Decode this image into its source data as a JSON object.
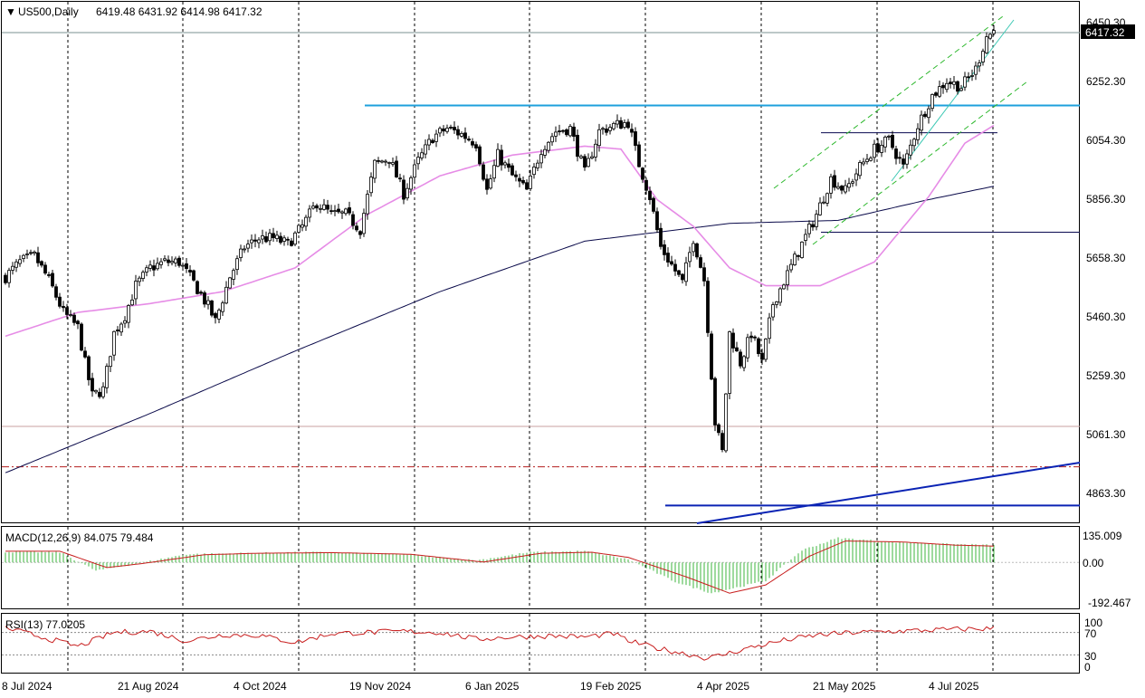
{
  "header": {
    "symbol_label": "US500,Daily",
    "ohlc": "6419.48 6431.92 6414.98 6417.32",
    "arrow_glyph": "▼"
  },
  "price_axis": {
    "ticks": [
      "6450.30",
      "6252.30",
      "6054.30",
      "5856.30",
      "5658.30",
      "5460.30",
      "5259.30",
      "5061.30",
      "4863.30"
    ],
    "current_price_label": "6417.32"
  },
  "macd_panel": {
    "label": "MACD(12,26,9) 84.075 79.484",
    "ticks": [
      "135.009",
      "0.00",
      "-192.467"
    ]
  },
  "rsi_panel": {
    "label": "RSI(13) 77.0205",
    "ticks": [
      "100",
      "70",
      "30",
      "0"
    ]
  },
  "time_axis": {
    "labels": [
      "8 Jul 2024",
      "21 Aug 2024",
      "4 Oct 2024",
      "19 Nov 2024",
      "6 Jan 2025",
      "19 Feb 2025",
      "4 Apr 2025",
      "21 May 2025",
      "4 Jul 2025"
    ]
  },
  "colors": {
    "bull": "#ffffff",
    "bear": "#000000",
    "ma50": "#e68ce6",
    "ma200": "#0a0a4a",
    "channel_green": "#2db82d",
    "resistance": "#1ea0dc",
    "support_navy": "#0a0a50",
    "trend_blue": "#0a23b4",
    "dashdot_red": "#b41e1e",
    "macd_hist": "#3cb43c",
    "macd_signal": "#c81e1e",
    "rsi_line": "#c81e1e"
  },
  "chart_data": {
    "type": "candlestick",
    "symbol": "US500",
    "timeframe": "Daily",
    "last": {
      "open": 6419.48,
      "high": 6431.92,
      "low": 6414.98,
      "close": 6417.32
    },
    "ylim": [
      4760,
      6510
    ],
    "close_anchors": [
      [
        0,
        5590
      ],
      [
        4,
        5640
      ],
      [
        8,
        5660
      ],
      [
        12,
        5580
      ],
      [
        16,
        5470
      ],
      [
        20,
        5420
      ],
      [
        22,
        5300
      ],
      [
        24,
        5190
      ],
      [
        27,
        5210
      ],
      [
        30,
        5400
      ],
      [
        33,
        5460
      ],
      [
        36,
        5560
      ],
      [
        40,
        5620
      ],
      [
        44,
        5640
      ],
      [
        48,
        5640
      ],
      [
        52,
        5570
      ],
      [
        56,
        5490
      ],
      [
        58,
        5440
      ],
      [
        62,
        5590
      ],
      [
        66,
        5690
      ],
      [
        70,
        5720
      ],
      [
        74,
        5720
      ],
      [
        78,
        5700
      ],
      [
        82,
        5760
      ],
      [
        86,
        5840
      ],
      [
        90,
        5800
      ],
      [
        94,
        5800
      ],
      [
        98,
        5750
      ],
      [
        102,
        5970
      ],
      [
        106,
        5990
      ],
      [
        110,
        5870
      ],
      [
        114,
        5980
      ],
      [
        118,
        6060
      ],
      [
        122,
        6090
      ],
      [
        126,
        6070
      ],
      [
        130,
        6040
      ],
      [
        133,
        5880
      ],
      [
        136,
        6000
      ],
      [
        140,
        5930
      ],
      [
        144,
        5880
      ],
      [
        148,
        6020
      ],
      [
        152,
        6080
      ],
      [
        156,
        6090
      ],
      [
        160,
        5940
      ],
      [
        164,
        6080
      ],
      [
        168,
        6100
      ],
      [
        172,
        6110
      ],
      [
        175,
        5970
      ],
      [
        178,
        5860
      ],
      [
        181,
        5690
      ],
      [
        184,
        5630
      ],
      [
        187,
        5570
      ],
      [
        190,
        5720
      ],
      [
        193,
        5580
      ],
      [
        196,
        5100
      ],
      [
        198,
        5000
      ],
      [
        200,
        5400
      ],
      [
        203,
        5300
      ],
      [
        206,
        5400
      ],
      [
        209,
        5300
      ],
      [
        212,
        5500
      ],
      [
        216,
        5600
      ],
      [
        220,
        5700
      ],
      [
        224,
        5800
      ],
      [
        228,
        5920
      ],
      [
        232,
        5880
      ],
      [
        236,
        5960
      ],
      [
        240,
        6020
      ],
      [
        244,
        6050
      ],
      [
        248,
        5960
      ],
      [
        252,
        6100
      ],
      [
        256,
        6200
      ],
      [
        260,
        6250
      ],
      [
        264,
        6230
      ],
      [
        268,
        6290
      ],
      [
        271,
        6400
      ],
      [
        273,
        6417
      ]
    ],
    "ma50_anchors": [
      [
        0,
        5390
      ],
      [
        20,
        5470
      ],
      [
        40,
        5500
      ],
      [
        60,
        5540
      ],
      [
        80,
        5620
      ],
      [
        100,
        5800
      ],
      [
        120,
        5930
      ],
      [
        140,
        6000
      ],
      [
        160,
        6030
      ],
      [
        170,
        6020
      ],
      [
        180,
        5850
      ],
      [
        190,
        5760
      ],
      [
        200,
        5620
      ],
      [
        210,
        5560
      ],
      [
        225,
        5560
      ],
      [
        240,
        5640
      ],
      [
        255,
        5860
      ],
      [
        265,
        6040
      ],
      [
        273,
        6100
      ]
    ],
    "ma200_anchors": [
      [
        0,
        4930
      ],
      [
        40,
        5130
      ],
      [
        80,
        5340
      ],
      [
        120,
        5540
      ],
      [
        160,
        5710
      ],
      [
        200,
        5770
      ],
      [
        230,
        5780
      ],
      [
        255,
        5850
      ],
      [
        273,
        5895
      ]
    ],
    "macd": {
      "value": 84.075,
      "signal": 79.484,
      "ylim": [
        -220,
        165
      ]
    },
    "macd_hist_anchors": [
      [
        0,
        52
      ],
      [
        15,
        50
      ],
      [
        25,
        -40
      ],
      [
        35,
        -10
      ],
      [
        50,
        40
      ],
      [
        65,
        45
      ],
      [
        85,
        50
      ],
      [
        110,
        40
      ],
      [
        130,
        10
      ],
      [
        145,
        50
      ],
      [
        160,
        55
      ],
      [
        172,
        15
      ],
      [
        185,
        -95
      ],
      [
        195,
        -150
      ],
      [
        200,
        -130
      ],
      [
        210,
        -90
      ],
      [
        220,
        60
      ],
      [
        230,
        120
      ],
      [
        245,
        100
      ],
      [
        260,
        90
      ],
      [
        273,
        84
      ]
    ],
    "macd_signal_anchors": [
      [
        0,
        55
      ],
      [
        15,
        55
      ],
      [
        28,
        -25
      ],
      [
        38,
        -5
      ],
      [
        55,
        38
      ],
      [
        70,
        45
      ],
      [
        90,
        48
      ],
      [
        112,
        40
      ],
      [
        132,
        2
      ],
      [
        148,
        45
      ],
      [
        162,
        50
      ],
      [
        172,
        25
      ],
      [
        188,
        -70
      ],
      [
        200,
        -150
      ],
      [
        210,
        -110
      ],
      [
        222,
        30
      ],
      [
        232,
        105
      ],
      [
        248,
        100
      ],
      [
        262,
        85
      ],
      [
        273,
        80
      ]
    ],
    "rsi": {
      "value": 77.0205,
      "levels": [
        70,
        30
      ],
      "ylim": [
        0,
        100
      ]
    },
    "rsi_anchors": [
      [
        0,
        78
      ],
      [
        10,
        62
      ],
      [
        20,
        45
      ],
      [
        30,
        70
      ],
      [
        40,
        72
      ],
      [
        50,
        55
      ],
      [
        60,
        66
      ],
      [
        70,
        65
      ],
      [
        80,
        52
      ],
      [
        90,
        68
      ],
      [
        100,
        70
      ],
      [
        110,
        72
      ],
      [
        120,
        70
      ],
      [
        130,
        58
      ],
      [
        140,
        62
      ],
      [
        150,
        64
      ],
      [
        160,
        62
      ],
      [
        168,
        68
      ],
      [
        172,
        55
      ],
      [
        180,
        42
      ],
      [
        188,
        32
      ],
      [
        194,
        24
      ],
      [
        198,
        30
      ],
      [
        205,
        42
      ],
      [
        215,
        56
      ],
      [
        225,
        66
      ],
      [
        235,
        70
      ],
      [
        245,
        72
      ],
      [
        255,
        74
      ],
      [
        265,
        76
      ],
      [
        273,
        77
      ]
    ],
    "lines": {
      "resistance": 6167,
      "box_top": 6075,
      "box_bottom": 5740,
      "dashdot": 4950,
      "support_low": 4820
    }
  }
}
